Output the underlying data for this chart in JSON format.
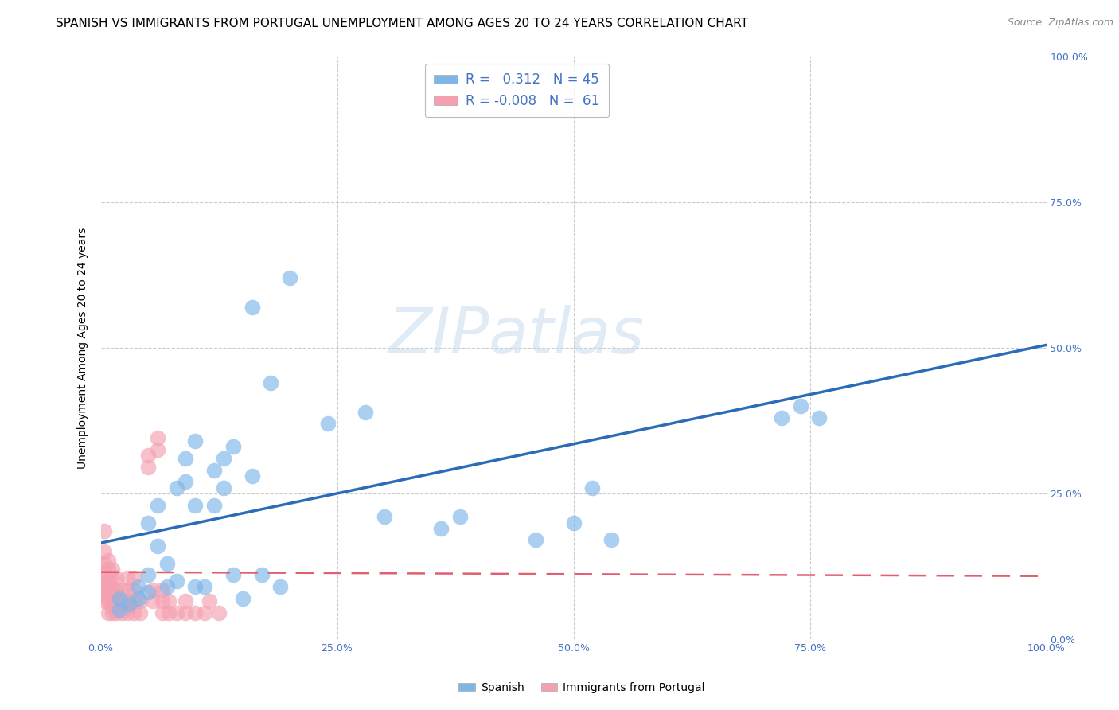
{
  "title": "SPANISH VS IMMIGRANTS FROM PORTUGAL UNEMPLOYMENT AMONG AGES 20 TO 24 YEARS CORRELATION CHART",
  "source": "Source: ZipAtlas.com",
  "ylabel": "Unemployment Among Ages 20 to 24 years",
  "xlim": [
    0.0,
    1.0
  ],
  "ylim": [
    0.0,
    1.0
  ],
  "xticks": [
    0.0,
    0.25,
    0.5,
    0.75,
    1.0
  ],
  "yticks": [
    0.0,
    0.25,
    0.5,
    0.75,
    1.0
  ],
  "spanish_color": "#7EB6E8",
  "portugal_color": "#F4A0B0",
  "trend_spanish_color": "#2B6CB8",
  "trend_portugal_color": "#E06070",
  "background_color": "#FFFFFF",
  "spanish_R": 0.312,
  "spanish_N": 45,
  "portugal_R": -0.008,
  "portugal_N": 61,
  "spanish_trend_x": [
    0.0,
    1.0
  ],
  "spanish_trend_y": [
    0.165,
    0.505
  ],
  "portugal_trend_x": [
    0.0,
    1.0
  ],
  "portugal_trend_y": [
    0.115,
    0.108
  ],
  "spanish_points": [
    [
      0.02,
      0.07
    ],
    [
      0.02,
      0.05
    ],
    [
      0.03,
      0.06
    ],
    [
      0.04,
      0.09
    ],
    [
      0.04,
      0.07
    ],
    [
      0.05,
      0.08
    ],
    [
      0.05,
      0.11
    ],
    [
      0.05,
      0.2
    ],
    [
      0.06,
      0.16
    ],
    [
      0.06,
      0.23
    ],
    [
      0.07,
      0.09
    ],
    [
      0.07,
      0.13
    ],
    [
      0.08,
      0.1
    ],
    [
      0.08,
      0.26
    ],
    [
      0.09,
      0.27
    ],
    [
      0.09,
      0.31
    ],
    [
      0.1,
      0.09
    ],
    [
      0.1,
      0.23
    ],
    [
      0.1,
      0.34
    ],
    [
      0.11,
      0.09
    ],
    [
      0.12,
      0.23
    ],
    [
      0.12,
      0.29
    ],
    [
      0.13,
      0.26
    ],
    [
      0.13,
      0.31
    ],
    [
      0.14,
      0.11
    ],
    [
      0.14,
      0.33
    ],
    [
      0.15,
      0.07
    ],
    [
      0.16,
      0.28
    ],
    [
      0.16,
      0.57
    ],
    [
      0.17,
      0.11
    ],
    [
      0.18,
      0.44
    ],
    [
      0.19,
      0.09
    ],
    [
      0.2,
      0.62
    ],
    [
      0.24,
      0.37
    ],
    [
      0.28,
      0.39
    ],
    [
      0.3,
      0.21
    ],
    [
      0.36,
      0.19
    ],
    [
      0.38,
      0.21
    ],
    [
      0.46,
      0.17
    ],
    [
      0.5,
      0.2
    ],
    [
      0.52,
      0.26
    ],
    [
      0.54,
      0.17
    ],
    [
      0.72,
      0.38
    ],
    [
      0.74,
      0.4
    ],
    [
      0.76,
      0.38
    ]
  ],
  "portugal_points": [
    [
      0.004,
      0.065
    ],
    [
      0.004,
      0.075
    ],
    [
      0.004,
      0.085
    ],
    [
      0.004,
      0.095
    ],
    [
      0.004,
      0.105
    ],
    [
      0.004,
      0.115
    ],
    [
      0.004,
      0.13
    ],
    [
      0.004,
      0.15
    ],
    [
      0.004,
      0.185
    ],
    [
      0.008,
      0.045
    ],
    [
      0.008,
      0.065
    ],
    [
      0.008,
      0.075
    ],
    [
      0.008,
      0.085
    ],
    [
      0.008,
      0.095
    ],
    [
      0.008,
      0.105
    ],
    [
      0.008,
      0.12
    ],
    [
      0.008,
      0.135
    ],
    [
      0.012,
      0.045
    ],
    [
      0.012,
      0.055
    ],
    [
      0.012,
      0.065
    ],
    [
      0.012,
      0.075
    ],
    [
      0.012,
      0.085
    ],
    [
      0.012,
      0.105
    ],
    [
      0.012,
      0.12
    ],
    [
      0.016,
      0.045
    ],
    [
      0.016,
      0.055
    ],
    [
      0.016,
      0.065
    ],
    [
      0.016,
      0.085
    ],
    [
      0.016,
      0.105
    ],
    [
      0.022,
      0.045
    ],
    [
      0.022,
      0.065
    ],
    [
      0.022,
      0.085
    ],
    [
      0.028,
      0.045
    ],
    [
      0.028,
      0.055
    ],
    [
      0.028,
      0.065
    ],
    [
      0.028,
      0.085
    ],
    [
      0.028,
      0.105
    ],
    [
      0.035,
      0.045
    ],
    [
      0.035,
      0.065
    ],
    [
      0.035,
      0.085
    ],
    [
      0.035,
      0.105
    ],
    [
      0.042,
      0.045
    ],
    [
      0.042,
      0.065
    ],
    [
      0.05,
      0.295
    ],
    [
      0.05,
      0.315
    ],
    [
      0.055,
      0.065
    ],
    [
      0.055,
      0.085
    ],
    [
      0.06,
      0.325
    ],
    [
      0.06,
      0.345
    ],
    [
      0.065,
      0.045
    ],
    [
      0.065,
      0.065
    ],
    [
      0.065,
      0.085
    ],
    [
      0.072,
      0.045
    ],
    [
      0.072,
      0.065
    ],
    [
      0.08,
      0.045
    ],
    [
      0.09,
      0.045
    ],
    [
      0.09,
      0.065
    ],
    [
      0.1,
      0.045
    ],
    [
      0.11,
      0.045
    ],
    [
      0.115,
      0.065
    ],
    [
      0.125,
      0.045
    ]
  ],
  "grid_color": "#CCCCCC",
  "title_fontsize": 11,
  "axis_label_fontsize": 10,
  "tick_fontsize": 9,
  "legend_fontsize": 12
}
